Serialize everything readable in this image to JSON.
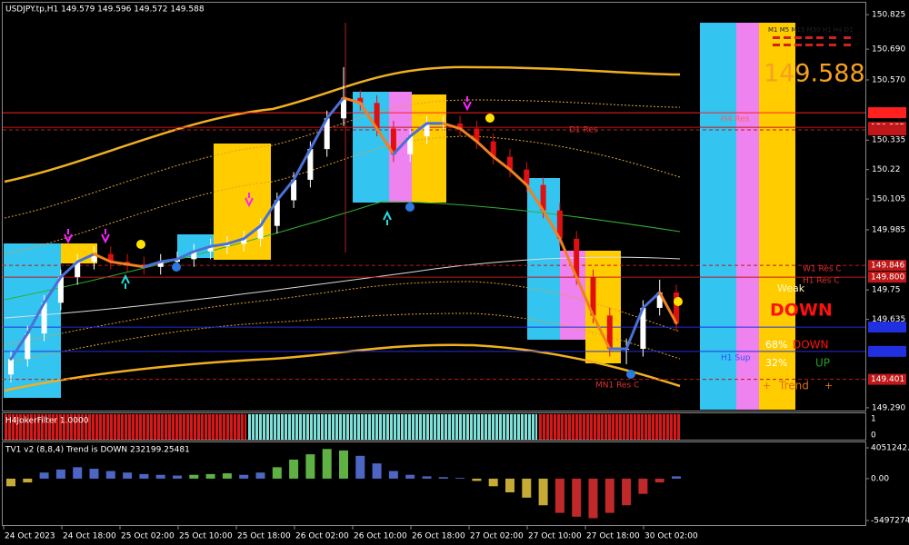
{
  "header": {
    "symbol_info": "USDJPY.tp,H1  149.579 149.596 149.572 149.588"
  },
  "price_axis": {
    "ylim": [
      149.279,
      150.882
    ],
    "ticks": [
      {
        "value": 150.825,
        "label": "150.825"
      },
      {
        "value": 150.69,
        "label": "150.690"
      },
      {
        "value": 150.57,
        "label": "150.570"
      },
      150.335,
      150.22,
      150.105,
      149.985,
      149.75,
      149.635,
      {
        "value": 149.29,
        "label": "149.290"
      }
    ]
  },
  "candles": [
    [
      149.42,
      149.51,
      149.39,
      149.48
    ],
    [
      149.48,
      149.61,
      149.45,
      149.58
    ],
    [
      149.58,
      149.73,
      149.55,
      149.7
    ],
    [
      149.7,
      149.83,
      149.67,
      149.8
    ],
    [
      149.8,
      149.89,
      149.77,
      149.86
    ],
    [
      149.86,
      149.92,
      149.83,
      149.89
    ],
    [
      149.89,
      149.92,
      149.83,
      149.86
    ],
    [
      149.86,
      149.89,
      149.82,
      149.85
    ],
    [
      149.85,
      149.88,
      149.81,
      149.84
    ],
    [
      149.84,
      149.89,
      149.81,
      149.86
    ],
    [
      149.86,
      149.9,
      149.83,
      149.87
    ],
    [
      149.87,
      149.93,
      149.84,
      149.9
    ],
    [
      149.9,
      149.95,
      149.87,
      149.92
    ],
    [
      149.92,
      149.96,
      149.89,
      149.93
    ],
    [
      149.93,
      149.98,
      149.9,
      149.95
    ],
    [
      149.95,
      150.03,
      149.92,
      150.0
    ],
    [
      150.0,
      150.13,
      149.97,
      150.1
    ],
    [
      150.1,
      150.21,
      150.07,
      150.18
    ],
    [
      150.18,
      150.33,
      150.15,
      150.3
    ],
    [
      150.3,
      150.45,
      150.27,
      150.42
    ],
    [
      150.42,
      150.62,
      150.39,
      150.5
    ],
    [
      150.5,
      150.53,
      150.45,
      150.48
    ],
    [
      150.48,
      150.51,
      150.35,
      150.38
    ],
    [
      150.38,
      150.41,
      150.25,
      150.28
    ],
    [
      150.28,
      150.38,
      150.25,
      150.35
    ],
    [
      150.35,
      150.43,
      150.32,
      150.4
    ],
    [
      150.4,
      150.43,
      150.37,
      150.4
    ],
    [
      150.4,
      150.43,
      150.35,
      150.38
    ],
    [
      150.38,
      150.41,
      150.3,
      150.33
    ],
    [
      150.33,
      150.36,
      150.24,
      150.27
    ],
    [
      150.27,
      150.3,
      150.19,
      150.22
    ],
    [
      150.22,
      150.25,
      150.13,
      150.16
    ],
    [
      150.16,
      150.19,
      150.03,
      150.06
    ],
    [
      150.06,
      150.09,
      149.92,
      149.95
    ],
    [
      149.95,
      149.98,
      149.77,
      149.8
    ],
    [
      149.8,
      149.83,
      149.62,
      149.65
    ],
    [
      149.65,
      149.68,
      149.49,
      149.52
    ],
    [
      149.52,
      149.56,
      149.46,
      149.52
    ],
    [
      149.52,
      149.71,
      149.49,
      149.68
    ],
    [
      149.68,
      149.79,
      149.65,
      149.74
    ],
    [
      149.74,
      149.77,
      149.59,
      149.62
    ]
  ],
  "levels": [
    {
      "value": 150.442,
      "color": "#ff2020",
      "dash": false
    },
    {
      "value": 150.385,
      "label": "150.385",
      "color": "#c01818",
      "dash": false
    },
    {
      "value": 150.375,
      "color": "#c01818",
      "dash": true
    },
    {
      "value": 149.846,
      "label": "149.846",
      "color": "#c01818",
      "dash": true
    },
    {
      "value": 149.8,
      "label": "149.800",
      "color": "#c01818",
      "dash": false
    },
    {
      "value": 149.605,
      "color": "#2030e0",
      "dash": false
    },
    {
      "value": 149.51,
      "color": "#2030e0",
      "dash": false
    },
    {
      "value": 149.401,
      "label": "149.401",
      "color": "#c01818",
      "dash": true
    }
  ],
  "level_names": {
    "h4_res": "H4 Res",
    "d1_res": "D1 Res",
    "w1_res": "W1 Res C",
    "h1_res": "H1 Res C",
    "h1_sup": "H1 Sup",
    "mn1_res": "MN1 Res C"
  },
  "panel": {
    "current_price": "149.588",
    "timeframes": "M1 M5 M15 M30 H1 H4 D1",
    "strength": "Weak",
    "signal": "DOWN",
    "down_pct": "68%",
    "down_label": "DOWN",
    "up_pct": "32%",
    "up_label": "UP",
    "trend_left": "+",
    "trend": "Trend",
    "trend_right": "+"
  },
  "filter": {
    "title": "H4JokerFilter 1.0000",
    "ticks": [
      "1",
      "0"
    ]
  },
  "oscillator": {
    "title": "TV1 v2 (8,8,4) Trend is DOWN 232199.25481",
    "ylim": [
      -6094000,
      4767000
    ],
    "ticks": [
      {
        "value": 4051242.9,
        "label": "4051242.9"
      },
      {
        "value": 0,
        "label": "0.00"
      },
      {
        "value": -5497274,
        "label": "-5497274."
      }
    ],
    "values": [
      -1000000,
      -500000,
      800000,
      1200000,
      1500000,
      1300000,
      1000000,
      800000,
      600000,
      500000,
      400000,
      500000,
      600000,
      700000,
      500000,
      800000,
      1500000,
      2500000,
      3200000,
      3900000,
      3700000,
      3000000,
      2000000,
      1000000,
      500000,
      300000,
      200000,
      100000,
      -300000,
      -1000000,
      -1800000,
      -2500000,
      -3500000,
      -4500000,
      -5000000,
      -5200000,
      -4500000,
      -3500000,
      -2000000,
      -500000,
      300000
    ],
    "colors": [
      "#e8c840",
      "#e8c840",
      "#5a78e8",
      "#5a78e8",
      "#5a78e8",
      "#5a78e8",
      "#5a78e8",
      "#5a78e8",
      "#5a78e8",
      "#5a78e8",
      "#5a78e8",
      "#70d050",
      "#70d050",
      "#70d050",
      "#5a78e8",
      "#5a78e8",
      "#70d050",
      "#70d050",
      "#70d050",
      "#70d050",
      "#70d050",
      "#5a78e8",
      "#5a78e8",
      "#5a78e8",
      "#5a78e8",
      "#5a78e8",
      "#5a78e8",
      "#5a78e8",
      "#e8c840",
      "#e8c840",
      "#e8c840",
      "#e8c840",
      "#e8c840",
      "#e03030",
      "#e03030",
      "#e03030",
      "#e03030",
      "#e03030",
      "#e03030",
      "#e03030",
      "#5a78e8"
    ]
  },
  "time_axis": {
    "labels": [
      "24 Oct 2023",
      "24 Oct 18:00",
      "25 Oct 02:00",
      "25 Oct 10:00",
      "25 Oct 18:00",
      "26 Oct 02:00",
      "26 Oct 10:00",
      "26 Oct 18:00",
      "27 Oct 02:00",
      "27 Oct 10:00",
      "27 Oct 18:00",
      "30 Oct 02:00"
    ]
  }
}
